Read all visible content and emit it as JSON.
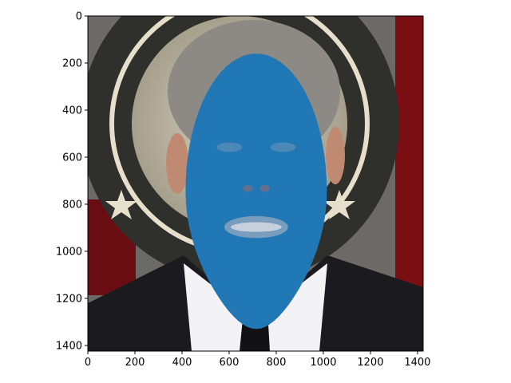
{
  "chart_data": {
    "type": "image",
    "title": "",
    "xlabel": "",
    "ylabel": "",
    "xlim": [
      0,
      1424
    ],
    "ylim": [
      1424,
      0
    ],
    "x_ticks": [
      0,
      200,
      400,
      600,
      800,
      1000,
      1200,
      1400
    ],
    "y_ticks": [
      0,
      200,
      400,
      600,
      800,
      1000,
      1200,
      1400
    ],
    "grid": false,
    "image_content": "photograph of a man in a dark suit and tie in front of a circular seal emblem, with a dense blue 3D face mesh overlaid on the face",
    "overlay": {
      "kind": "face-mesh",
      "color": "#1f77b4",
      "center_x": 715,
      "center_y": 745,
      "half_width": 300,
      "half_height": 585
    }
  }
}
